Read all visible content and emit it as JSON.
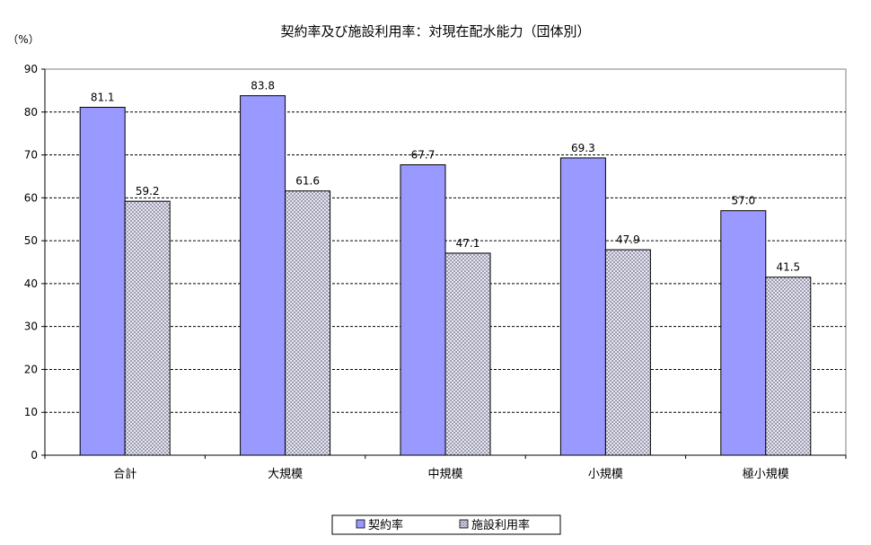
{
  "chart_data": {
    "type": "bar",
    "title": "契約率及び施設利用率：対現在配水能力（団体別）",
    "ylabel": "（%）",
    "xlabel": "",
    "categories": [
      "合計",
      "大規模",
      "中規模",
      "小規模",
      "極小規模"
    ],
    "series": [
      {
        "name": "契約率",
        "values": [
          81.1,
          83.8,
          67.7,
          69.3,
          57.0
        ],
        "labels": [
          "81.1",
          "83.8",
          "67.7",
          "69.3",
          "57.0"
        ],
        "color": "#9999ff"
      },
      {
        "name": "施設利用率",
        "values": [
          59.2,
          61.6,
          47.1,
          47.9,
          41.5
        ],
        "labels": [
          "59.2",
          "61.6",
          "47.1",
          "47.9",
          "41.5"
        ],
        "color": "#c0c0d8"
      }
    ],
    "ylim": [
      0,
      90
    ],
    "yticks": [
      0,
      10,
      20,
      30,
      40,
      50,
      60,
      70,
      80,
      90
    ],
    "grid": true,
    "legend_position": "bottom"
  }
}
